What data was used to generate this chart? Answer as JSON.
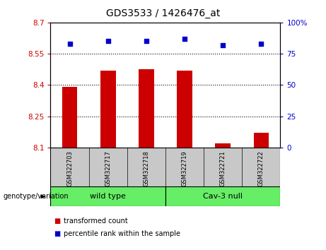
{
  "title": "GDS3533 / 1426476_at",
  "samples": [
    "GSM322703",
    "GSM322717",
    "GSM322718",
    "GSM322719",
    "GSM322721",
    "GSM322722"
  ],
  "transformed_counts": [
    8.39,
    8.47,
    8.475,
    8.47,
    8.12,
    8.17
  ],
  "percentile_ranks": [
    83,
    85,
    85,
    87,
    82,
    83
  ],
  "ylim_left": [
    8.1,
    8.7
  ],
  "ylim_right": [
    0,
    100
  ],
  "yticks_left": [
    8.1,
    8.25,
    8.4,
    8.55,
    8.7
  ],
  "yticks_right": [
    0,
    25,
    50,
    75,
    100
  ],
  "ytick_labels_right": [
    "0",
    "25",
    "50",
    "75",
    "100%"
  ],
  "hlines": [
    8.25,
    8.4,
    8.55
  ],
  "bar_color": "#cc0000",
  "dot_color": "#0000cc",
  "bar_width": 0.4,
  "group_label": "genotype/variation",
  "wt_label": "wild type",
  "cav_label": "Cav-3 null",
  "group_color": "#66ee66",
  "legend_items": [
    {
      "label": "transformed count",
      "color": "#cc0000"
    },
    {
      "label": "percentile rank within the sample",
      "color": "#0000cc"
    }
  ],
  "left_axis_color": "#cc0000",
  "right_axis_color": "#0000cc",
  "tick_bg_color": "#c8c8c8",
  "title_fontsize": 10
}
